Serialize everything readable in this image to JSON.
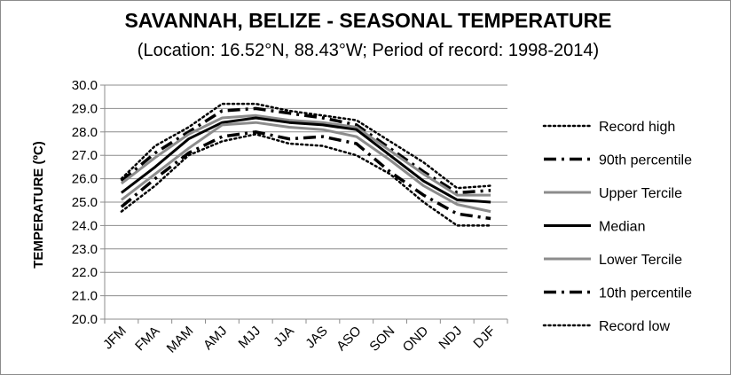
{
  "chart_data": {
    "type": "line",
    "title": "SAVANNAH, BELIZE - SEASONAL TEMPERATURE",
    "subtitle": "(Location: 16.52°N, 88.43°W; Period of record: 1998-2014)",
    "ylabel": "TEMPERATURE (ºC)",
    "xlabel": "",
    "categories": [
      "JFM",
      "FMA",
      "MAM",
      "AMJ",
      "MJJ",
      "JJA",
      "JAS",
      "ASO",
      "SON",
      "OND",
      "NDJ",
      "DJF"
    ],
    "y_ticks": [
      "30.0",
      "29.0",
      "28.0",
      "27.0",
      "26.0",
      "25.0",
      "24.0",
      "23.0",
      "22.0",
      "21.0",
      "20.0"
    ],
    "ylim": [
      20,
      30
    ],
    "grid": true,
    "legend_position": "right",
    "series": [
      {
        "name": "Record high",
        "color": "#000000",
        "style": "dotted",
        "values": [
          26.0,
          27.4,
          28.2,
          29.2,
          29.2,
          28.9,
          28.7,
          28.5,
          27.6,
          26.7,
          25.6,
          25.7
        ]
      },
      {
        "name": "90th percentile",
        "color": "#000000",
        "style": "dashdot",
        "values": [
          25.9,
          27.1,
          28.0,
          28.9,
          29.0,
          28.8,
          28.6,
          28.3,
          27.3,
          26.3,
          25.4,
          25.5
        ]
      },
      {
        "name": "Upper Tercile",
        "color": "#8c8c8c",
        "style": "solid",
        "values": [
          25.8,
          26.9,
          27.9,
          28.6,
          28.7,
          28.5,
          28.4,
          28.2,
          27.2,
          26.2,
          25.3,
          25.3
        ]
      },
      {
        "name": "Median",
        "color": "#000000",
        "style": "solid",
        "values": [
          25.4,
          26.5,
          27.7,
          28.4,
          28.6,
          28.4,
          28.3,
          28.1,
          27.0,
          25.9,
          25.1,
          25.0
        ]
      },
      {
        "name": "Lower Tercile",
        "color": "#8c8c8c",
        "style": "solid",
        "values": [
          25.1,
          26.2,
          27.3,
          28.3,
          28.4,
          28.2,
          28.1,
          27.8,
          26.8,
          25.7,
          24.9,
          24.6
        ]
      },
      {
        "name": "10th percentile",
        "color": "#000000",
        "style": "dashdot",
        "values": [
          24.8,
          26.0,
          27.1,
          27.8,
          28.0,
          27.7,
          27.8,
          27.5,
          26.3,
          25.3,
          24.5,
          24.3
        ]
      },
      {
        "name": "Record low",
        "color": "#000000",
        "style": "dotted",
        "values": [
          24.6,
          25.7,
          27.0,
          27.6,
          27.9,
          27.5,
          27.4,
          27.0,
          26.2,
          25.0,
          24.0,
          24.0
        ]
      }
    ]
  }
}
